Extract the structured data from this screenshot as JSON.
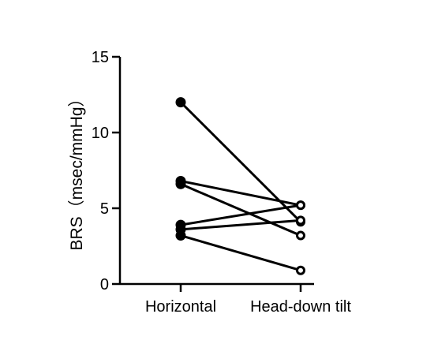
{
  "chart_data": {
    "type": "scatter",
    "style": "paired-dot-plot",
    "title": "",
    "xlabel": "",
    "ylabel": "BRS（msec/mmHg）",
    "categories": [
      "Horizontal",
      "Head-down tilt"
    ],
    "ylim": [
      0,
      15
    ],
    "yticks": [
      0,
      5,
      10,
      15
    ],
    "grid": false,
    "legend": "none",
    "marker_styles": [
      "filled-circle",
      "open-circle"
    ],
    "colors": {
      "line": "#000000",
      "marker": "#000000"
    },
    "pairs": [
      {
        "values": [
          12.0,
          4.1
        ]
      },
      {
        "values": [
          6.8,
          5.2
        ]
      },
      {
        "values": [
          6.6,
          3.2
        ]
      },
      {
        "values": [
          3.9,
          5.2
        ]
      },
      {
        "values": [
          3.6,
          4.2
        ]
      },
      {
        "values": [
          3.2,
          0.9
        ]
      }
    ]
  }
}
